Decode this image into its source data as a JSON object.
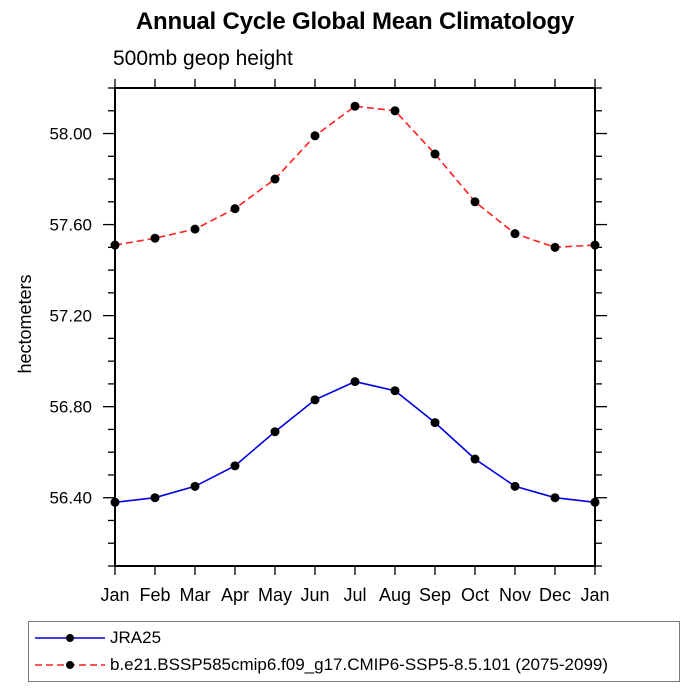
{
  "chart_data": {
    "type": "line",
    "title": "Annual Cycle Global Mean Climatology",
    "subtitle": "500mb geop height",
    "ylabel": "hectometers",
    "xlabel": "",
    "x_tick_labels": [
      "Jan",
      "Feb",
      "Mar",
      "Apr",
      "May",
      "Jun",
      "Jul",
      "Aug",
      "Sep",
      "Oct",
      "Nov",
      "Dec",
      "Jan"
    ],
    "ylim": [
      56.1,
      58.2
    ],
    "y_major_ticks": [
      56.4,
      56.8,
      57.2,
      57.6,
      58.0
    ],
    "y_minor_step": 0.1,
    "grid": "off",
    "legend_position": "bottom-left",
    "frame_color": "#000000",
    "marker_color": "#000000",
    "series": [
      {
        "name": "JRA25",
        "color": "#0000e0",
        "line_style": "solid",
        "marker": "dot",
        "values": [
          56.38,
          56.4,
          56.45,
          56.54,
          56.69,
          56.83,
          56.91,
          56.87,
          56.73,
          56.57,
          56.45,
          56.4,
          56.38
        ]
      },
      {
        "name": "b.e21.BSSP585cmip6.f09_g17.CMIP6-SSP5-8.5.101 (2075-2099)",
        "color": "#ff2020",
        "line_style": "dashed",
        "marker": "dot",
        "values": [
          57.51,
          57.54,
          57.58,
          57.67,
          57.8,
          57.99,
          58.12,
          58.1,
          57.91,
          57.7,
          57.56,
          57.5,
          57.51
        ]
      }
    ]
  }
}
